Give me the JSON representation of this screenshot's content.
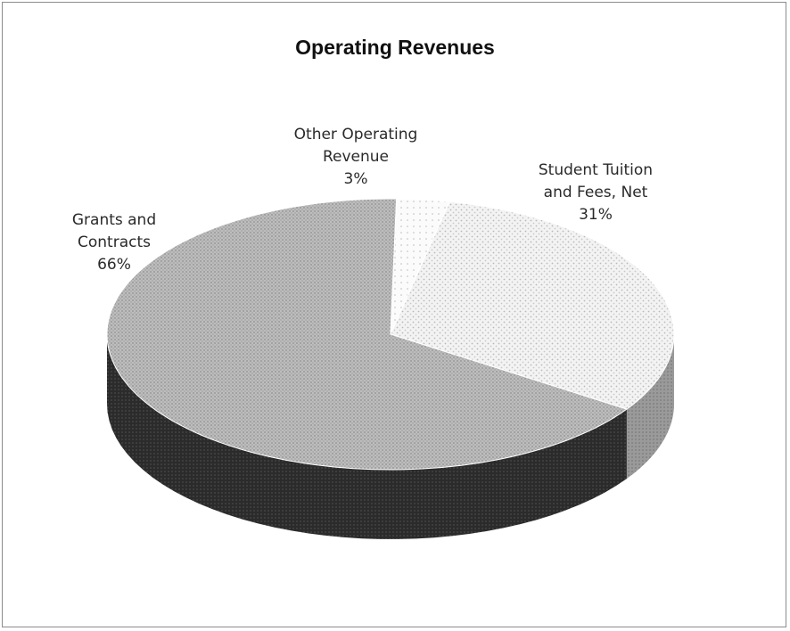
{
  "chart_data": {
    "type": "pie",
    "title": "Operating Revenues",
    "slices": [
      {
        "label_lines": [
          "Student Tuition",
          "and Fees, Net"
        ],
        "pct_label": "31%",
        "value": 31,
        "pattern": "light-dots"
      },
      {
        "label_lines": [
          "Grants and",
          "Contracts"
        ],
        "pct_label": "66%",
        "value": 66,
        "pattern": "medium-gray"
      },
      {
        "label_lines": [
          "Other Operating",
          "Revenue"
        ],
        "pct_label": "3%",
        "value": 3,
        "pattern": "sparse-dots"
      }
    ],
    "three_d": true,
    "legend": "none"
  }
}
